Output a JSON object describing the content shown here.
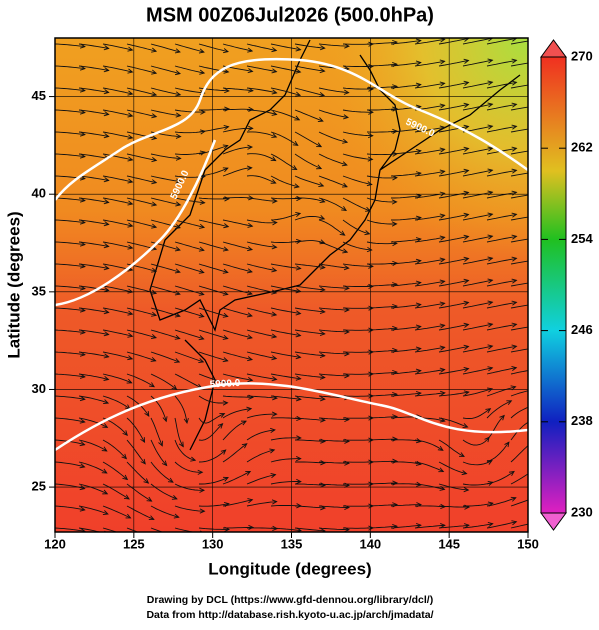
{
  "title": "MSM 00Z06Jul2026 (500.0hPa)",
  "map": {
    "xlabel": "Longitude (degrees)",
    "ylabel": "Latitude  (degrees)",
    "xlim": [
      120,
      150
    ],
    "ylim": [
      22.7,
      48
    ],
    "xticks": [
      120,
      125,
      130,
      135,
      140,
      145,
      150
    ],
    "yticks": [
      25,
      30,
      35,
      40,
      45
    ],
    "contours": [
      {
        "value": 5900,
        "label": "5900.0"
      },
      {
        "value": 5900,
        "label": "5900.0"
      },
      {
        "value": 5900,
        "label": "5900.0"
      }
    ]
  },
  "colorbar": {
    "lim": [
      230,
      270
    ],
    "ticks": [
      230,
      238,
      246,
      254,
      262,
      270
    ]
  },
  "credits": [
    "Drawing by DCL (https://www.gfd-dennou.org/library/dcl/)",
    "Data from http://database.rish.kyoto-u.ac.jp/arch/jmadata/"
  ]
}
